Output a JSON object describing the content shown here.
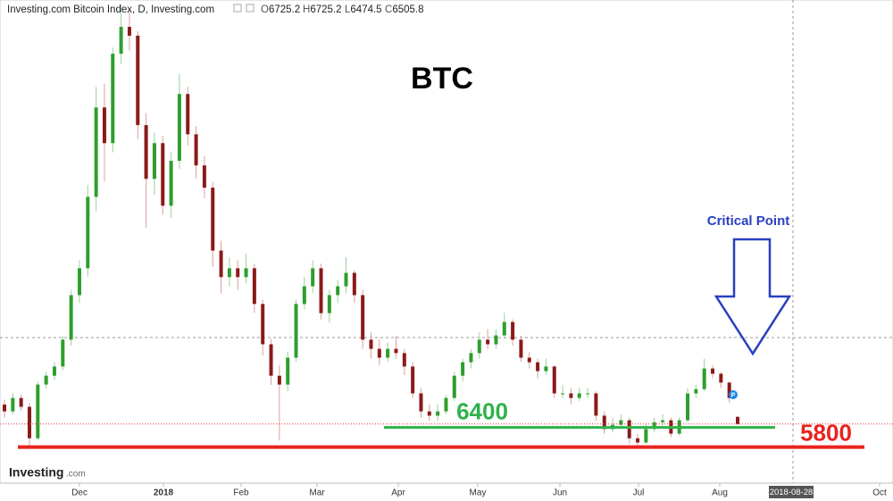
{
  "chart_data": {
    "type": "candlestick",
    "header": {
      "title": "Investing.com Bitcoin Index, D, Investing.com",
      "ohlc": [
        {
          "label": "O",
          "value": 6725.2
        },
        {
          "label": "H",
          "value": 6725.2
        },
        {
          "label": "L",
          "value": 6474.5
        },
        {
          "label": "C",
          "value": 6505.8
        }
      ]
    },
    "title": "BTC",
    "annotation": "Critical Point",
    "levels": [
      {
        "value": 6400,
        "color": "#2db34a"
      },
      {
        "value": 5800,
        "color": "#e8231e"
      }
    ],
    "x_labels": [
      "Dec",
      "2018",
      "Feb",
      "Mar",
      "Apr",
      "May",
      "Jun",
      "Jul",
      "Aug",
      "Oct"
    ],
    "cursor_date": "2018-08-28",
    "logo": {
      "name": "Investing",
      "suffix": ".com"
    },
    "up_color": "#2e9e2e",
    "down_color": "#8b1a1a",
    "ylim": [
      4700,
      19450
    ],
    "candles": [
      [
        7100,
        7250,
        6700,
        6890
      ],
      [
        6890,
        7450,
        6800,
        7300
      ],
      [
        7300,
        7400,
        6900,
        7030
      ],
      [
        7030,
        7150,
        5820,
        6070
      ],
      [
        6070,
        7800,
        6000,
        7710
      ],
      [
        7710,
        8100,
        7600,
        7980
      ],
      [
        7980,
        8400,
        7850,
        8260
      ],
      [
        8260,
        9200,
        8150,
        9080
      ],
      [
        9080,
        10600,
        8900,
        10440
      ],
      [
        10440,
        11500,
        10200,
        11260
      ],
      [
        11260,
        13800,
        11000,
        13440
      ],
      [
        13440,
        16800,
        13000,
        16170
      ],
      [
        16170,
        16900,
        13900,
        15080
      ],
      [
        15080,
        18000,
        14800,
        17810
      ],
      [
        17810,
        19300,
        17500,
        18630
      ],
      [
        18630,
        19100,
        17900,
        18360
      ],
      [
        18360,
        18500,
        15200,
        15630
      ],
      [
        15630,
        16000,
        12500,
        13990
      ],
      [
        13990,
        15400,
        13500,
        15080
      ],
      [
        15080,
        15300,
        12900,
        13170
      ],
      [
        13170,
        14800,
        12800,
        14540
      ],
      [
        14540,
        17200,
        14300,
        16580
      ],
      [
        16580,
        16800,
        15000,
        15350
      ],
      [
        15350,
        15600,
        14000,
        14400
      ],
      [
        14400,
        14700,
        13400,
        13720
      ],
      [
        13720,
        13900,
        11300,
        11800
      ],
      [
        11800,
        12100,
        10500,
        10990
      ],
      [
        10990,
        11600,
        10700,
        11260
      ],
      [
        11260,
        11500,
        10600,
        10990
      ],
      [
        10990,
        11700,
        10800,
        11260
      ],
      [
        11260,
        11400,
        9900,
        10170
      ],
      [
        10170,
        10300,
        8600,
        8940
      ],
      [
        8940,
        9100,
        7700,
        7980
      ],
      [
        7980,
        8300,
        6000,
        7710
      ],
      [
        7710,
        8700,
        7500,
        8530
      ],
      [
        8530,
        10300,
        8400,
        10170
      ],
      [
        10170,
        11000,
        10000,
        10710
      ],
      [
        10710,
        11500,
        10500,
        11260
      ],
      [
        11260,
        11400,
        9700,
        9890
      ],
      [
        9890,
        10600,
        9600,
        10440
      ],
      [
        10440,
        10900,
        10200,
        10710
      ],
      [
        10710,
        11600,
        10500,
        11120
      ],
      [
        11120,
        11200,
        10200,
        10440
      ],
      [
        10440,
        10600,
        8800,
        9080
      ],
      [
        9080,
        9300,
        8500,
        8800
      ],
      [
        8800,
        9100,
        8300,
        8530
      ],
      [
        8530,
        9000,
        8400,
        8800
      ],
      [
        8800,
        9200,
        8500,
        8670
      ],
      [
        8670,
        8800,
        8000,
        8260
      ],
      [
        8260,
        8400,
        7300,
        7440
      ],
      [
        7440,
        7600,
        6700,
        6890
      ],
      [
        6890,
        7100,
        6600,
        6760
      ],
      [
        6760,
        7100,
        6600,
        6890
      ],
      [
        6890,
        7400,
        6800,
        7300
      ],
      [
        7300,
        8100,
        7200,
        7980
      ],
      [
        7980,
        8500,
        7800,
        8390
      ],
      [
        8390,
        8800,
        8200,
        8670
      ],
      [
        8670,
        9300,
        8500,
        9080
      ],
      [
        9080,
        9400,
        8800,
        8940
      ],
      [
        8940,
        9400,
        8800,
        9210
      ],
      [
        9210,
        9900,
        9100,
        9620
      ],
      [
        9620,
        9700,
        8900,
        9080
      ],
      [
        9080,
        9200,
        8400,
        8530
      ],
      [
        8530,
        8700,
        8200,
        8390
      ],
      [
        8390,
        8500,
        7900,
        8120
      ],
      [
        8120,
        8500,
        8000,
        8260
      ],
      [
        8260,
        8300,
        7300,
        7440
      ],
      [
        7440,
        7700,
        7300,
        7440
      ],
      [
        7440,
        7600,
        7100,
        7300
      ],
      [
        7300,
        7600,
        7200,
        7440
      ],
      [
        7440,
        7600,
        7300,
        7440
      ],
      [
        7440,
        7500,
        6600,
        6760
      ],
      [
        6760,
        6900,
        6200,
        6350
      ],
      [
        6350,
        6700,
        6250,
        6480
      ],
      [
        6480,
        6800,
        6400,
        6620
      ],
      [
        6620,
        6700,
        5900,
        6070
      ],
      [
        6070,
        6200,
        5800,
        5940
      ],
      [
        5940,
        6500,
        5900,
        6350
      ],
      [
        6350,
        6700,
        6250,
        6560
      ],
      [
        6560,
        6800,
        6450,
        6620
      ],
      [
        6620,
        6700,
        6100,
        6210
      ],
      [
        6210,
        6700,
        6150,
        6620
      ],
      [
        6620,
        7600,
        6550,
        7440
      ],
      [
        7440,
        7700,
        7300,
        7570
      ],
      [
        7570,
        8500,
        7500,
        8200
      ],
      [
        8200,
        8300,
        7900,
        8040
      ],
      [
        8040,
        8100,
        7600,
        7770
      ],
      [
        7770,
        7800,
        7150,
        7300
      ],
      [
        6725.2,
        6725.2,
        6474.5,
        6505.8
      ]
    ]
  }
}
